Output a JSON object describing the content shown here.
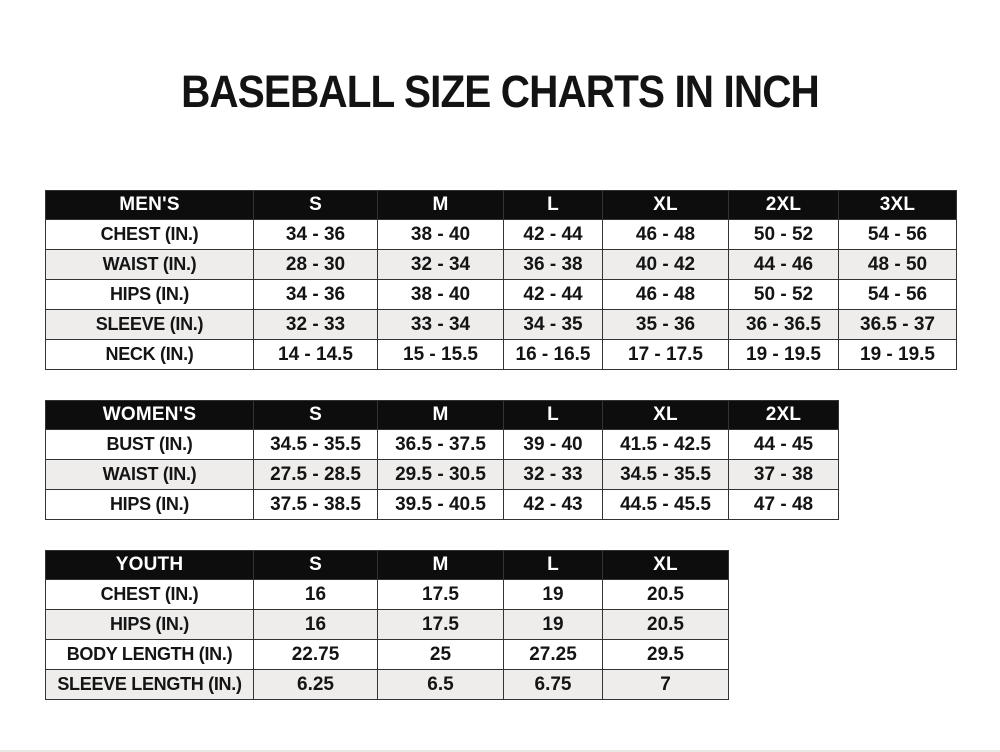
{
  "title": "BASEBALL SIZE CHARTS IN INCH",
  "colors": {
    "page_bg": "#ffffff",
    "header_bg": "#0d0d0d",
    "header_text": "#ffffff",
    "row_stripe": "#eeedec",
    "border": "#333333",
    "text": "#141414"
  },
  "chart_data": [
    {
      "type": "table",
      "group_label": "MEN'S",
      "columns": [
        "S",
        "M",
        "L",
        "XL",
        "2XL",
        "3XL"
      ],
      "rows": [
        {
          "label": "CHEST (IN.)",
          "values": [
            "34 - 36",
            "38 - 40",
            "42 - 44",
            "46 - 48",
            "50 - 52",
            "54 - 56"
          ]
        },
        {
          "label": "WAIST (IN.)",
          "values": [
            "28 - 30",
            "32 - 34",
            "36 - 38",
            "40 - 42",
            "44 - 46",
            "48 - 50"
          ]
        },
        {
          "label": "HIPS (IN.)",
          "values": [
            "34 - 36",
            "38 - 40",
            "42 - 44",
            "46 - 48",
            "50 - 52",
            "54 - 56"
          ]
        },
        {
          "label": "SLEEVE (IN.)",
          "values": [
            "32 - 33",
            "33 - 34",
            "34 - 35",
            "35 - 36",
            "36 - 36.5",
            "36.5 - 37"
          ]
        },
        {
          "label": "NECK (IN.)",
          "values": [
            "14 - 14.5",
            "15 - 15.5",
            "16 - 16.5",
            "17 - 17.5",
            "19 - 19.5",
            "19 - 19.5"
          ]
        }
      ]
    },
    {
      "type": "table",
      "group_label": "WOMEN'S",
      "columns": [
        "S",
        "M",
        "L",
        "XL",
        "2XL"
      ],
      "rows": [
        {
          "label": "BUST (IN.)",
          "values": [
            "34.5 - 35.5",
            "36.5 - 37.5",
            "39 - 40",
            "41.5 - 42.5",
            "44 - 45"
          ]
        },
        {
          "label": "WAIST (IN.)",
          "values": [
            "27.5 - 28.5",
            "29.5 - 30.5",
            "32 - 33",
            "34.5 - 35.5",
            "37 - 38"
          ]
        },
        {
          "label": "HIPS (IN.)",
          "values": [
            "37.5 - 38.5",
            "39.5 - 40.5",
            "42 - 43",
            "44.5 - 45.5",
            "47 - 48"
          ]
        }
      ]
    },
    {
      "type": "table",
      "group_label": "YOUTH",
      "columns": [
        "S",
        "M",
        "L",
        "XL"
      ],
      "rows": [
        {
          "label": "CHEST (IN.)",
          "values": [
            "16",
            "17.5",
            "19",
            "20.5"
          ]
        },
        {
          "label": "HIPS (IN.)",
          "values": [
            "16",
            "17.5",
            "19",
            "20.5"
          ]
        },
        {
          "label": "BODY LENGTH (IN.)",
          "values": [
            "22.75",
            "25",
            "27.25",
            "29.5"
          ]
        },
        {
          "label": "SLEEVE LENGTH (IN.)",
          "values": [
            "6.25",
            "6.5",
            "6.75",
            "7"
          ]
        }
      ]
    }
  ]
}
